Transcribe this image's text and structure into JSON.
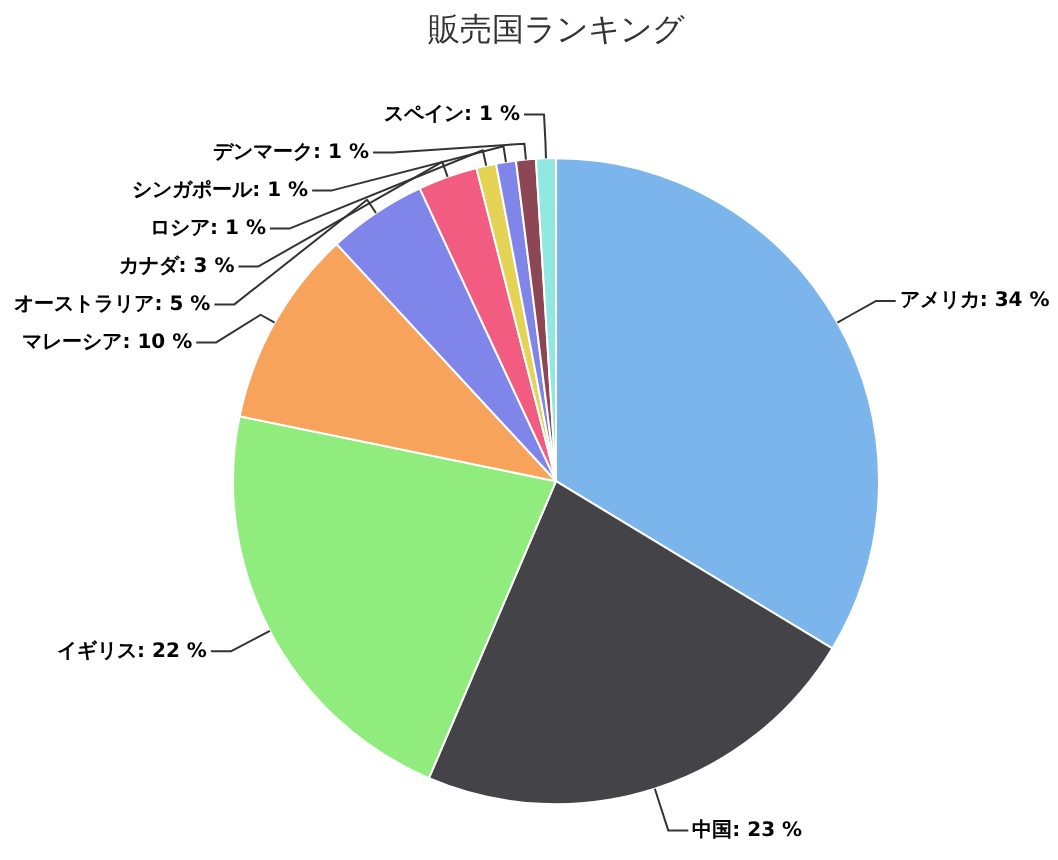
{
  "chart_data": {
    "type": "pie",
    "title": "販売国ランキング",
    "categories": [
      "アメリカ",
      "中国",
      "イギリス",
      "マレーシア",
      "オーストラリア",
      "カナダ",
      "ロシア",
      "シンガポール",
      "デンマーク",
      "スペイン"
    ],
    "values": [
      34,
      23,
      22,
      10,
      5,
      3,
      1,
      1,
      1,
      1
    ],
    "value_labels": [
      "34 %",
      "23 %",
      "22 %",
      "10 %",
      "5 %",
      "3 %",
      "1 %",
      "1 %",
      "1 %",
      "1 %"
    ],
    "colors": [
      "#7cb5ec",
      "#434348",
      "#90ed7d",
      "#f7a35c",
      "#8085e9",
      "#f15c80",
      "#e4d354",
      "#8085e9",
      "#8d4653",
      "#91e8e1"
    ],
    "legend": false
  }
}
